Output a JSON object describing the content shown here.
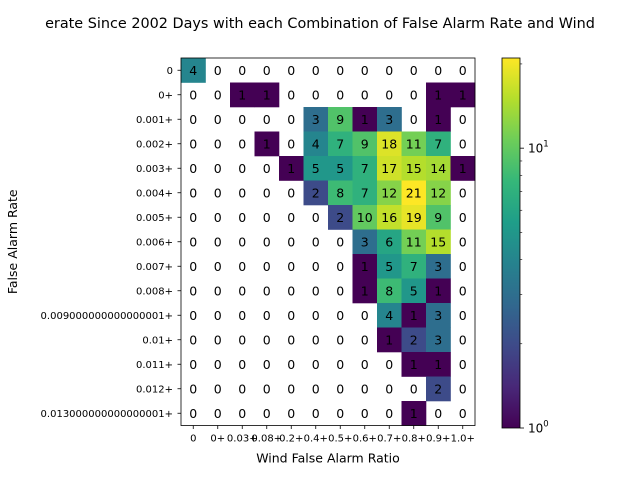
{
  "chart_data": {
    "type": "heatmap",
    "title": "erate Since 2002 Days with each Combination of False Alarm Rate and Wind",
    "xlabel": "Wind False Alarm Ratio",
    "ylabel": "False Alarm Rate",
    "x_tick_labels": [
      "0",
      "0+",
      "0.03+",
      "0.08+",
      "0.2+",
      "0.4+",
      "0.5+",
      "0.6+",
      "0.7+",
      "0.8+",
      "0.9+",
      "1.0+"
    ],
    "y_categories": [
      "0",
      "0+",
      "0.001+",
      "0.002+",
      "0.003+",
      "0.004+",
      "0.005+",
      "0.006+",
      "0.007+",
      "0.008+",
      "0.009000000000000001+",
      "0.01+",
      "0.011+",
      "0.012+",
      "0.013000000000000001+"
    ],
    "values": [
      [
        4,
        0,
        0,
        0,
        0,
        0,
        0,
        0,
        0,
        0,
        0,
        0
      ],
      [
        0,
        0,
        1,
        1,
        0,
        0,
        0,
        0,
        0,
        0,
        1,
        1
      ],
      [
        0,
        0,
        0,
        0,
        0,
        3,
        9,
        1,
        3,
        0,
        1,
        0
      ],
      [
        0,
        0,
        0,
        1,
        0,
        4,
        7,
        9,
        18,
        11,
        7,
        0
      ],
      [
        0,
        0,
        0,
        0,
        1,
        5,
        5,
        7,
        17,
        15,
        14,
        1
      ],
      [
        0,
        0,
        0,
        0,
        0,
        2,
        8,
        7,
        12,
        21,
        12,
        0
      ],
      [
        0,
        0,
        0,
        0,
        0,
        0,
        2,
        10,
        16,
        19,
        9,
        0
      ],
      [
        0,
        0,
        0,
        0,
        0,
        0,
        0,
        3,
        6,
        11,
        15,
        0
      ],
      [
        0,
        0,
        0,
        0,
        0,
        0,
        0,
        1,
        5,
        7,
        3,
        0
      ],
      [
        0,
        0,
        0,
        0,
        0,
        0,
        0,
        1,
        8,
        5,
        1,
        0
      ],
      [
        0,
        0,
        0,
        0,
        0,
        0,
        0,
        0,
        4,
        1,
        3,
        0
      ],
      [
        0,
        0,
        0,
        0,
        0,
        0,
        0,
        0,
        1,
        2,
        3,
        0
      ],
      [
        0,
        0,
        0,
        0,
        0,
        0,
        0,
        0,
        0,
        1,
        1,
        0
      ],
      [
        0,
        0,
        0,
        0,
        0,
        0,
        0,
        0,
        0,
        0,
        2,
        0
      ],
      [
        0,
        0,
        0,
        0,
        0,
        0,
        0,
        0,
        0,
        1,
        0,
        0
      ]
    ],
    "color_scale": {
      "type": "log",
      "colormap": "viridis",
      "range": [
        1,
        21
      ],
      "ticks": [
        1,
        10
      ],
      "tick_labels": [
        "10^0",
        "10^1"
      ],
      "zero_cells": "blank"
    },
    "grid": false
  }
}
